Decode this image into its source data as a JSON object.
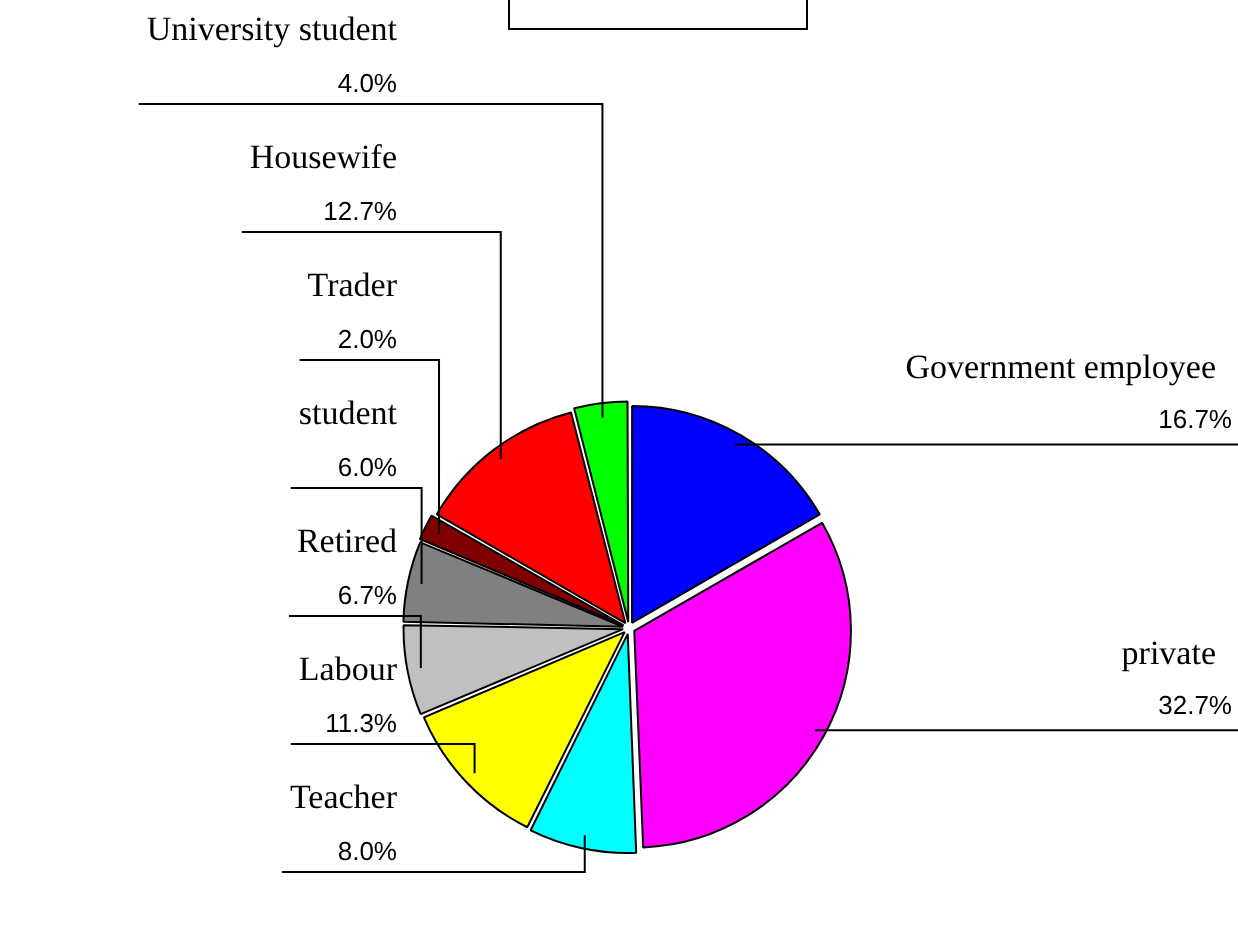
{
  "chart_data": {
    "type": "pie",
    "categories": [
      "Government employee",
      "private",
      "Teacher",
      "Labour",
      "Retired",
      "student",
      "Trader",
      "Housewife",
      "University student"
    ],
    "values": [
      16.7,
      32.7,
      8.0,
      11.3,
      6.7,
      6.0,
      2.0,
      12.7,
      4.0
    ],
    "value_labels": [
      "16.7%",
      "32.7%",
      "8.0%",
      "11.3%",
      "6.7%",
      "6.0%",
      "2.0%",
      "12.7%",
      "4.0%"
    ],
    "colors": [
      "#0000ff",
      "#ff00ff",
      "#00ffff",
      "#ffff00",
      "#c0c0c0",
      "#808080",
      "#800000",
      "#ff0000",
      "#00ff00"
    ],
    "legend": false
  }
}
